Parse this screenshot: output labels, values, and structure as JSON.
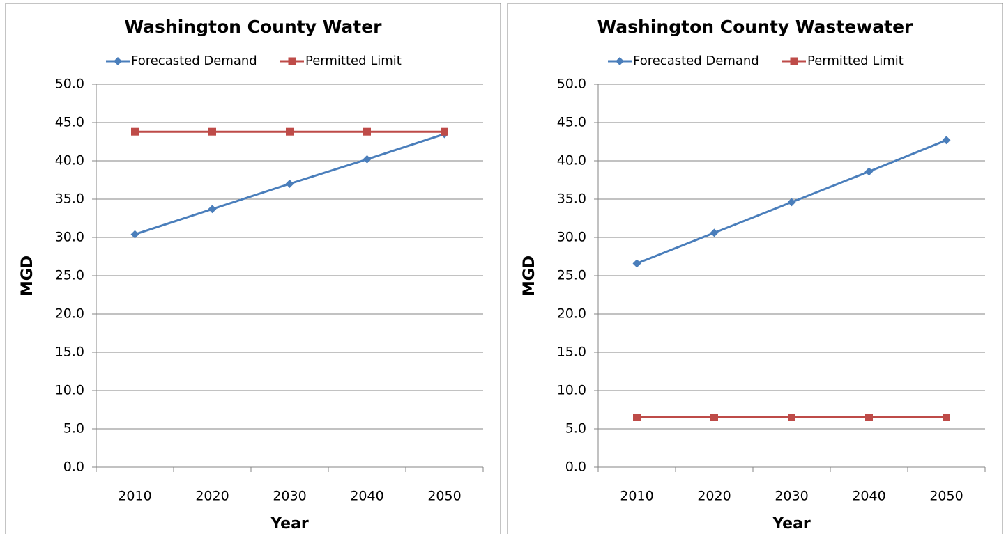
{
  "chart_data": [
    {
      "type": "line",
      "title": "Washington County Water",
      "ylabel": "MGD",
      "xlabel": "Year",
      "categories": [
        "2010",
        "2020",
        "2030",
        "2040",
        "2050"
      ],
      "series": [
        {
          "name": "Forecasted Demand",
          "color": "#4a7ebb",
          "marker": "diamond",
          "values": [
            30.4,
            33.7,
            37.0,
            40.2,
            43.5
          ]
        },
        {
          "name": "Permitted Limit",
          "color": "#be4b48",
          "marker": "square",
          "values": [
            43.8,
            43.8,
            43.8,
            43.8,
            43.8
          ]
        }
      ],
      "ylim": [
        0,
        50
      ],
      "yticks": [
        {
          "value": 0,
          "label": "0.0"
        },
        {
          "value": 5,
          "label": "5.0"
        },
        {
          "value": 10,
          "label": "10.0"
        },
        {
          "value": 15,
          "label": "15.0"
        },
        {
          "value": 20,
          "label": "20.0"
        },
        {
          "value": 25,
          "label": "25.0"
        },
        {
          "value": 30,
          "label": "30.0"
        },
        {
          "value": 35,
          "label": "35.0"
        },
        {
          "value": 40,
          "label": "40.0"
        },
        {
          "value": 45,
          "label": "45.0"
        },
        {
          "value": 50,
          "label": "50.0"
        }
      ],
      "grid": true,
      "legend": "top"
    },
    {
      "type": "line",
      "title": "Washington County Wastewater",
      "ylabel": "MGD",
      "xlabel": "Year",
      "categories": [
        "2010",
        "2020",
        "2030",
        "2040",
        "2050"
      ],
      "series": [
        {
          "name": "Forecasted Demand",
          "color": "#4a7ebb",
          "marker": "diamond",
          "values": [
            26.6,
            30.6,
            34.6,
            38.6,
            42.7
          ]
        },
        {
          "name": "Permitted Limit",
          "color": "#be4b48",
          "marker": "square",
          "values": [
            6.5,
            6.5,
            6.5,
            6.5,
            6.5
          ]
        }
      ],
      "ylim": [
        0,
        50
      ],
      "yticks": [
        {
          "value": 0,
          "label": "0.0"
        },
        {
          "value": 5,
          "label": "5.0"
        },
        {
          "value": 10,
          "label": "10.0"
        },
        {
          "value": 15,
          "label": "15.0"
        },
        {
          "value": 20,
          "label": "20.0"
        },
        {
          "value": 25,
          "label": "25.0"
        },
        {
          "value": 30,
          "label": "30.0"
        },
        {
          "value": 35,
          "label": "35.0"
        },
        {
          "value": 40,
          "label": "40.0"
        },
        {
          "value": 45,
          "label": "45.0"
        },
        {
          "value": 50,
          "label": "50.0"
        }
      ],
      "grid": true,
      "legend": "top"
    }
  ]
}
